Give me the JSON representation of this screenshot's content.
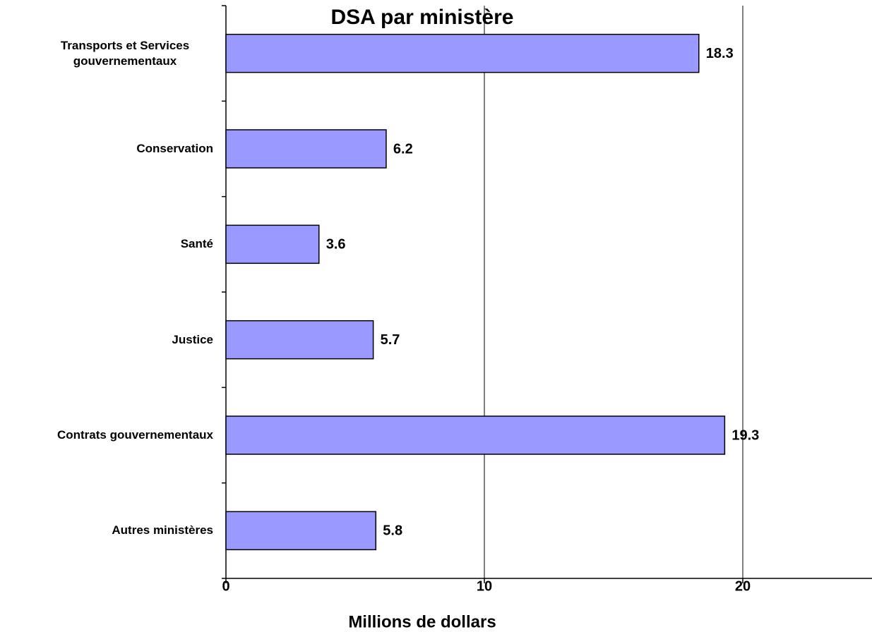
{
  "chart_data": {
    "type": "bar",
    "orientation": "horizontal",
    "title": "DSA par ministère",
    "x_label": "Millions de dollars",
    "categories": [
      "Transports et Services gouvernementaux",
      "Conservation",
      "Santé",
      "Justice",
      "Contrats gouvernementaux",
      "Autres ministères"
    ],
    "values": [
      18.3,
      6.2,
      3.6,
      5.7,
      19.3,
      5.8
    ],
    "value_labels": [
      "18.3",
      "6.2",
      "3.6",
      "5.7",
      "19.3",
      "5.8"
    ],
    "color": "#9999ff",
    "xlim": [
      0,
      25
    ],
    "xticks": [
      0,
      10,
      20
    ],
    "grid": true
  }
}
